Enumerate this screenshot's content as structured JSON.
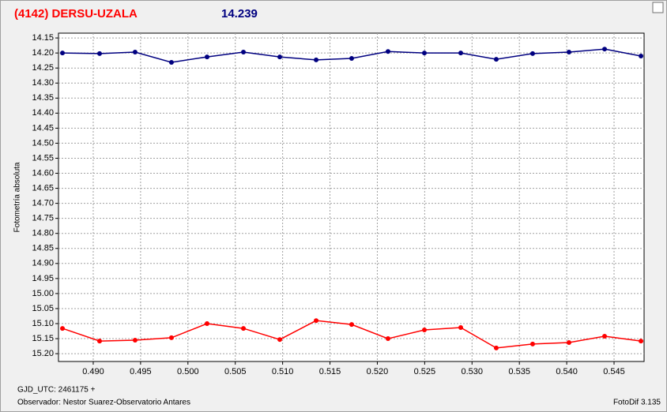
{
  "chart_data": {
    "type": "line",
    "title": "(4142) DERSU-UZALA",
    "subtitle": "14.239",
    "y_label": "Fotometría absoluta",
    "x_label": "GJD_UTC: 2461175 +",
    "observer": "Observador: Nestor Suarez-Observatorio Antares",
    "software": "FotoDif 3.135",
    "grid": true,
    "x": [
      0.48675,
      0.49067,
      0.49442,
      0.49826,
      0.50202,
      0.50586,
      0.5097,
      0.51354,
      0.51729,
      0.52113,
      0.52497,
      0.52881,
      0.53256,
      0.5364,
      0.54024,
      0.544,
      0.54784
    ],
    "series": [
      {
        "color": "#000080",
        "values": [
          14.2,
          14.202,
          14.197,
          14.231,
          14.213,
          14.197,
          14.213,
          14.223,
          14.218,
          14.195,
          14.2,
          14.2,
          14.221,
          14.202,
          14.197,
          14.187,
          14.21
        ]
      },
      {
        "color": "#ff0000",
        "values": [
          15.116,
          15.158,
          15.155,
          15.147,
          15.1,
          15.116,
          15.153,
          15.09,
          15.103,
          15.15,
          15.121,
          15.113,
          15.181,
          15.168,
          15.163,
          15.142,
          15.158
        ]
      }
    ],
    "xlim": [
      0.48633,
      0.54817
    ],
    "ylim": [
      15.226,
      14.134
    ],
    "xticks": [
      {
        "value": 0.49,
        "label": "0.490"
      },
      {
        "value": 0.495,
        "label": "0.495"
      },
      {
        "value": 0.5,
        "label": "0.500"
      },
      {
        "value": 0.505,
        "label": "0.505"
      },
      {
        "value": 0.51,
        "label": "0.510"
      },
      {
        "value": 0.515,
        "label": "0.515"
      },
      {
        "value": 0.52,
        "label": "0.520"
      },
      {
        "value": 0.525,
        "label": "0.525"
      },
      {
        "value": 0.53,
        "label": "0.530"
      },
      {
        "value": 0.535,
        "label": "0.535"
      },
      {
        "value": 0.54,
        "label": "0.540"
      },
      {
        "value": 0.545,
        "label": "0.545"
      }
    ],
    "yticks": [
      {
        "value": 14.15,
        "label": "14.15"
      },
      {
        "value": 14.2,
        "label": "14.20"
      },
      {
        "value": 14.25,
        "label": "14.25"
      },
      {
        "value": 14.3,
        "label": "14.30"
      },
      {
        "value": 14.35,
        "label": "14.35"
      },
      {
        "value": 14.4,
        "label": "14.40"
      },
      {
        "value": 14.45,
        "label": "14.45"
      },
      {
        "value": 14.5,
        "label": "14.50"
      },
      {
        "value": 14.55,
        "label": "14.55"
      },
      {
        "value": 14.6,
        "label": "14.60"
      },
      {
        "value": 14.65,
        "label": "14.65"
      },
      {
        "value": 14.7,
        "label": "14.70"
      },
      {
        "value": 14.75,
        "label": "14.75"
      },
      {
        "value": 14.8,
        "label": "14.80"
      },
      {
        "value": 14.85,
        "label": "14.85"
      },
      {
        "value": 14.9,
        "label": "14.90"
      },
      {
        "value": 14.95,
        "label": "14.95"
      },
      {
        "value": 15.0,
        "label": "15.00"
      },
      {
        "value": 15.05,
        "label": "15.05"
      },
      {
        "value": 15.1,
        "label": "15.10"
      },
      {
        "value": 15.15,
        "label": "15.15"
      },
      {
        "value": 15.2,
        "label": "15.20"
      }
    ]
  }
}
